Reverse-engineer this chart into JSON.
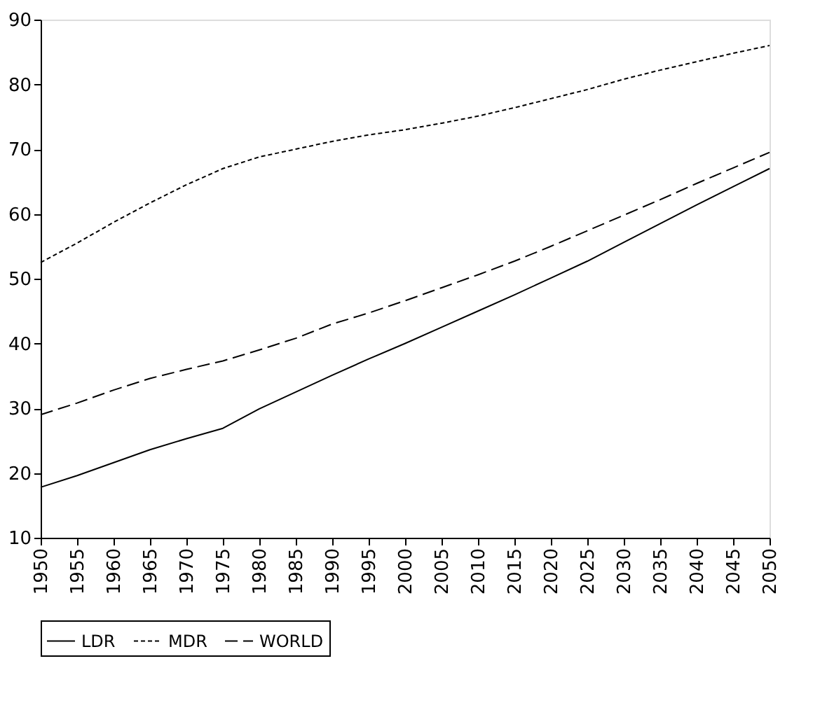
{
  "chart_data": {
    "type": "line",
    "x": [
      1950,
      1955,
      1960,
      1965,
      1970,
      1975,
      1980,
      1985,
      1990,
      1995,
      2000,
      2005,
      2010,
      2015,
      2020,
      2025,
      2030,
      2035,
      2040,
      2045,
      2050
    ],
    "series": [
      {
        "name": "LDR",
        "color": "#000000",
        "line_style": "solid",
        "values": [
          17.8,
          19.6,
          21.6,
          23.6,
          25.3,
          26.9,
          29.9,
          32.5,
          35.1,
          37.6,
          40,
          42.5,
          45,
          47.5,
          50.1,
          52.7,
          55.6,
          58.5,
          61.4,
          64.2,
          67
        ]
      },
      {
        "name": "MDR",
        "color": "#000000",
        "line_style": "dotted",
        "values": [
          52.5,
          55.5,
          58.7,
          61.7,
          64.5,
          67,
          68.8,
          70,
          71.2,
          72.2,
          73,
          74,
          75.1,
          76.4,
          77.8,
          79.2,
          80.8,
          82.2,
          83.5,
          84.8,
          86
        ]
      },
      {
        "name": "WORLD",
        "color": "#000000",
        "line_style": "dashed",
        "values": [
          29,
          30.8,
          32.8,
          34.6,
          36,
          37.3,
          39,
          40.8,
          43,
          44.7,
          46.6,
          48.6,
          50.6,
          52.7,
          55,
          57.4,
          59.8,
          62.2,
          64.7,
          67.1,
          69.5
        ]
      }
    ],
    "xlim": [
      1950,
      2050
    ],
    "xticks": [
      1950,
      1955,
      1960,
      1965,
      1970,
      1975,
      1980,
      1985,
      1990,
      1995,
      2000,
      2005,
      2010,
      2015,
      2020,
      2025,
      2030,
      2035,
      2040,
      2045,
      2050
    ],
    "ylim": [
      10,
      90
    ],
    "yticks": [
      10,
      20,
      30,
      40,
      50,
      60,
      70,
      80,
      90
    ],
    "grid": false,
    "legend": "bottom",
    "marker": "none"
  }
}
